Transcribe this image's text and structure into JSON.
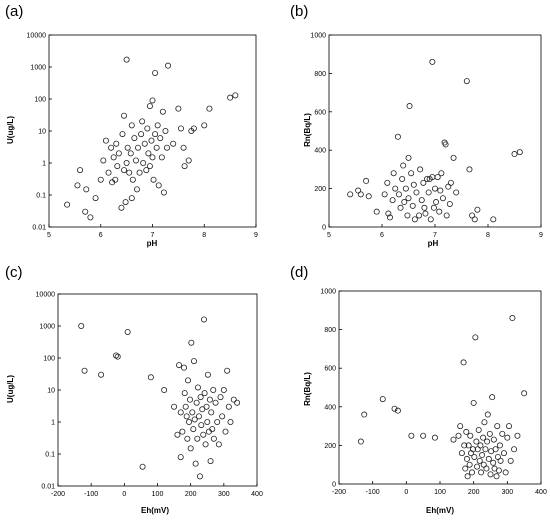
{
  "chart_data": [
    {
      "type": "scatter",
      "panel_label": "(a)",
      "xlabel": "pH",
      "ylabel": "U(ug/L)",
      "xlim": [
        5,
        9
      ],
      "ylim": [
        0.01,
        10000
      ],
      "yscale": "log",
      "xticks": [
        "5",
        "6",
        "7",
        "8",
        "9"
      ],
      "yticks": [
        "0.01",
        "0.1",
        "1",
        "10",
        "100",
        "1000",
        "10000"
      ],
      "grid": false,
      "marker": "open-circle",
      "points": [
        [
          5.35,
          0.05
        ],
        [
          5.55,
          0.2
        ],
        [
          5.6,
          0.6
        ],
        [
          5.7,
          0.03
        ],
        [
          5.72,
          0.15
        ],
        [
          5.8,
          0.02
        ],
        [
          5.9,
          0.08
        ],
        [
          6.0,
          0.3
        ],
        [
          6.05,
          1.2
        ],
        [
          6.1,
          5
        ],
        [
          6.15,
          0.5
        ],
        [
          6.2,
          3
        ],
        [
          6.22,
          0.25
        ],
        [
          6.25,
          1.5
        ],
        [
          6.28,
          0.3
        ],
        [
          6.3,
          4
        ],
        [
          6.32,
          0.8
        ],
        [
          6.35,
          2
        ],
        [
          6.4,
          0.04
        ],
        [
          6.42,
          8
        ],
        [
          6.45,
          0.6
        ],
        [
          6.45,
          30
        ],
        [
          6.48,
          0.06
        ],
        [
          6.5,
          1
        ],
        [
          6.5,
          1700
        ],
        [
          6.52,
          3
        ],
        [
          6.55,
          0.5
        ],
        [
          6.58,
          2
        ],
        [
          6.6,
          0.08
        ],
        [
          6.6,
          15
        ],
        [
          6.62,
          0.3
        ],
        [
          6.65,
          6
        ],
        [
          6.68,
          1.2
        ],
        [
          6.7,
          0.15
        ],
        [
          6.72,
          3
        ],
        [
          6.75,
          0.5
        ],
        [
          6.78,
          8
        ],
        [
          6.8,
          20
        ],
        [
          6.82,
          1
        ],
        [
          6.85,
          4
        ],
        [
          6.88,
          0.6
        ],
        [
          6.9,
          12
        ],
        [
          6.92,
          2
        ],
        [
          6.95,
          0.8
        ],
        [
          6.95,
          60
        ],
        [
          6.98,
          5
        ],
        [
          7.0,
          90
        ],
        [
          7.0,
          1.5
        ],
        [
          7.02,
          0.3
        ],
        [
          7.05,
          8
        ],
        [
          7.05,
          650
        ],
        [
          7.08,
          3
        ],
        [
          7.1,
          15
        ],
        [
          7.12,
          0.2
        ],
        [
          7.15,
          6
        ],
        [
          7.18,
          1.5
        ],
        [
          7.2,
          40
        ],
        [
          7.22,
          0.12
        ],
        [
          7.25,
          10
        ],
        [
          7.28,
          3
        ],
        [
          7.3,
          1100
        ],
        [
          7.4,
          4
        ],
        [
          7.5,
          50
        ],
        [
          7.55,
          12
        ],
        [
          7.6,
          3
        ],
        [
          7.62,
          0.8
        ],
        [
          7.7,
          1.2
        ],
        [
          7.75,
          10
        ],
        [
          7.8,
          12
        ],
        [
          8.0,
          15
        ],
        [
          8.1,
          50
        ],
        [
          8.5,
          110
        ],
        [
          8.6,
          130
        ]
      ]
    },
    {
      "type": "scatter",
      "panel_label": "(b)",
      "xlabel": "pH",
      "ylabel": "Rn(Bq/L)",
      "xlim": [
        5,
        9
      ],
      "ylim": [
        0,
        1000
      ],
      "yscale": "linear",
      "xticks": [
        "5",
        "6",
        "7",
        "8",
        "9"
      ],
      "yticks": [
        "0",
        "200",
        "400",
        "600",
        "800",
        "1000"
      ],
      "grid": false,
      "marker": "open-circle",
      "points": [
        [
          5.4,
          170
        ],
        [
          5.55,
          190
        ],
        [
          5.6,
          170
        ],
        [
          5.7,
          240
        ],
        [
          5.75,
          160
        ],
        [
          5.9,
          80
        ],
        [
          6.05,
          170
        ],
        [
          6.1,
          230
        ],
        [
          6.12,
          70
        ],
        [
          6.15,
          50
        ],
        [
          6.2,
          140
        ],
        [
          6.22,
          280
        ],
        [
          6.25,
          200
        ],
        [
          6.3,
          470
        ],
        [
          6.32,
          170
        ],
        [
          6.35,
          100
        ],
        [
          6.38,
          250
        ],
        [
          6.4,
          320
        ],
        [
          6.42,
          130
        ],
        [
          6.45,
          200
        ],
        [
          6.48,
          60
        ],
        [
          6.5,
          360
        ],
        [
          6.5,
          150
        ],
        [
          6.52,
          630
        ],
        [
          6.55,
          280
        ],
        [
          6.58,
          110
        ],
        [
          6.6,
          220
        ],
        [
          6.62,
          40
        ],
        [
          6.65,
          180
        ],
        [
          6.7,
          60
        ],
        [
          6.72,
          300
        ],
        [
          6.75,
          140
        ],
        [
          6.78,
          230
        ],
        [
          6.8,
          100
        ],
        [
          6.82,
          70
        ],
        [
          6.85,
          250
        ],
        [
          6.88,
          180
        ],
        [
          6.9,
          250
        ],
        [
          6.92,
          40
        ],
        [
          6.95,
          260
        ],
        [
          6.95,
          860
        ],
        [
          6.98,
          100
        ],
        [
          7.0,
          200
        ],
        [
          7.02,
          130
        ],
        [
          7.05,
          260
        ],
        [
          7.08,
          80
        ],
        [
          7.1,
          190
        ],
        [
          7.12,
          280
        ],
        [
          7.15,
          150
        ],
        [
          7.18,
          440
        ],
        [
          7.2,
          430
        ],
        [
          7.22,
          60
        ],
        [
          7.25,
          210
        ],
        [
          7.28,
          120
        ],
        [
          7.3,
          230
        ],
        [
          7.35,
          360
        ],
        [
          7.4,
          180
        ],
        [
          7.6,
          760
        ],
        [
          7.65,
          300
        ],
        [
          7.7,
          60
        ],
        [
          7.75,
          40
        ],
        [
          7.8,
          90
        ],
        [
          8.1,
          40
        ],
        [
          8.5,
          380
        ],
        [
          8.6,
          390
        ]
      ]
    },
    {
      "type": "scatter",
      "panel_label": "(c)",
      "xlabel": "Eh(mV)",
      "ylabel": "U(ug/L)",
      "xlim": [
        -200,
        400
      ],
      "ylim": [
        0.01,
        10000
      ],
      "yscale": "log",
      "xticks": [
        "-200",
        "-100",
        "0",
        "100",
        "200",
        "300",
        "400"
      ],
      "yticks": [
        "0.01",
        "0.1",
        "1",
        "10",
        "100",
        "1000",
        "10000"
      ],
      "grid": false,
      "marker": "open-circle",
      "points": [
        [
          -130,
          1000
        ],
        [
          -120,
          40
        ],
        [
          -70,
          30
        ],
        [
          -25,
          120
        ],
        [
          -20,
          110
        ],
        [
          10,
          650
        ],
        [
          55,
          0.04
        ],
        [
          80,
          25
        ],
        [
          120,
          10
        ],
        [
          150,
          3
        ],
        [
          160,
          0.4
        ],
        [
          165,
          60
        ],
        [
          170,
          2
        ],
        [
          170,
          0.08
        ],
        [
          175,
          0.5
        ],
        [
          180,
          50
        ],
        [
          182,
          8
        ],
        [
          185,
          3
        ],
        [
          188,
          1.5
        ],
        [
          190,
          0.3
        ],
        [
          192,
          20
        ],
        [
          195,
          1
        ],
        [
          198,
          5
        ],
        [
          200,
          0.15
        ],
        [
          202,
          300
        ],
        [
          205,
          2
        ],
        [
          208,
          0.6
        ],
        [
          210,
          80
        ],
        [
          212,
          1.2
        ],
        [
          215,
          0.05
        ],
        [
          218,
          4
        ],
        [
          220,
          0.3
        ],
        [
          222,
          12
        ],
        [
          225,
          1.5
        ],
        [
          228,
          0.02
        ],
        [
          230,
          6
        ],
        [
          232,
          0.8
        ],
        [
          235,
          2.5
        ],
        [
          238,
          0.4
        ],
        [
          240,
          1600
        ],
        [
          242,
          8
        ],
        [
          245,
          0.2
        ],
        [
          248,
          3
        ],
        [
          250,
          1
        ],
        [
          252,
          30
        ],
        [
          255,
          0.5
        ],
        [
          258,
          5
        ],
        [
          260,
          0.06
        ],
        [
          262,
          2
        ],
        [
          265,
          0.6
        ],
        [
          268,
          10
        ],
        [
          270,
          0.3
        ],
        [
          275,
          4
        ],
        [
          280,
          1
        ],
        [
          285,
          0.2
        ],
        [
          290,
          6
        ],
        [
          295,
          1.5
        ],
        [
          300,
          10
        ],
        [
          305,
          0.5
        ],
        [
          310,
          40
        ],
        [
          315,
          3
        ],
        [
          320,
          1
        ],
        [
          330,
          5
        ],
        [
          340,
          4
        ]
      ]
    },
    {
      "type": "scatter",
      "panel_label": "(d)",
      "xlabel": "Eh(mV)",
      "ylabel": "Rn(Bq/L)",
      "xlim": [
        -200,
        400
      ],
      "ylim": [
        0,
        1000
      ],
      "yscale": "linear",
      "xticks": [
        "-200",
        "-100",
        "0",
        "100",
        "200",
        "300",
        "400"
      ],
      "yticks": [
        "0",
        "200",
        "400",
        "600",
        "800",
        "1000"
      ],
      "grid": false,
      "marker": "open-circle",
      "points": [
        [
          -135,
          220
        ],
        [
          -125,
          360
        ],
        [
          -70,
          440
        ],
        [
          -35,
          390
        ],
        [
          -25,
          380
        ],
        [
          15,
          250
        ],
        [
          50,
          250
        ],
        [
          85,
          240
        ],
        [
          140,
          230
        ],
        [
          155,
          250
        ],
        [
          160,
          300
        ],
        [
          165,
          160
        ],
        [
          170,
          630
        ],
        [
          172,
          200
        ],
        [
          175,
          80
        ],
        [
          178,
          270
        ],
        [
          180,
          130
        ],
        [
          182,
          40
        ],
        [
          185,
          200
        ],
        [
          188,
          100
        ],
        [
          190,
          250
        ],
        [
          192,
          160
        ],
        [
          195,
          60
        ],
        [
          198,
          180
        ],
        [
          200,
          420
        ],
        [
          202,
          140
        ],
        [
          205,
          760
        ],
        [
          208,
          220
        ],
        [
          210,
          90
        ],
        [
          212,
          180
        ],
        [
          215,
          280
        ],
        [
          218,
          120
        ],
        [
          220,
          200
        ],
        [
          222,
          60
        ],
        [
          225,
          150
        ],
        [
          228,
          240
        ],
        [
          230,
          100
        ],
        [
          232,
          320
        ],
        [
          235,
          180
        ],
        [
          238,
          80
        ],
        [
          240,
          220
        ],
        [
          242,
          360
        ],
        [
          245,
          130
        ],
        [
          248,
          260
        ],
        [
          250,
          50
        ],
        [
          252,
          170
        ],
        [
          255,
          450
        ],
        [
          258,
          110
        ],
        [
          260,
          230
        ],
        [
          262,
          80
        ],
        [
          265,
          180
        ],
        [
          268,
          40
        ],
        [
          270,
          300
        ],
        [
          272,
          140
        ],
        [
          275,
          70
        ],
        [
          278,
          200
        ],
        [
          280,
          120
        ],
        [
          285,
          260
        ],
        [
          290,
          160
        ],
        [
          295,
          60
        ],
        [
          300,
          240
        ],
        [
          305,
          300
        ],
        [
          310,
          120
        ],
        [
          315,
          860
        ],
        [
          320,
          180
        ],
        [
          330,
          250
        ],
        [
          350,
          470
        ]
      ]
    }
  ]
}
